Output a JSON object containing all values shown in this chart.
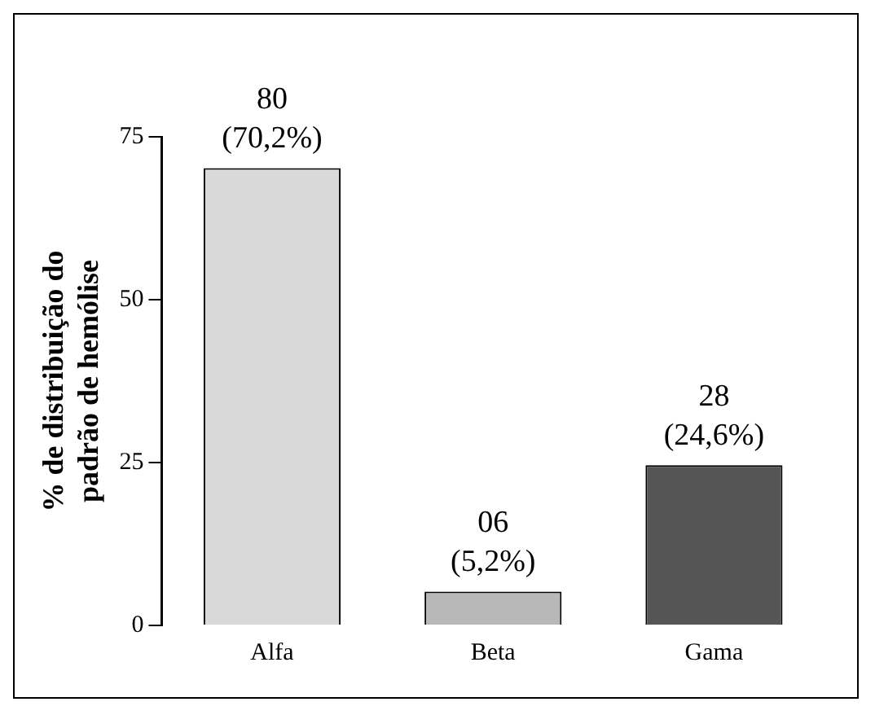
{
  "chart_data": {
    "type": "bar",
    "ylabel": "% de distribuição do\npadrão de hemólise",
    "categories": [
      "Alfa",
      "Beta",
      "Gama"
    ],
    "values": [
      70.2,
      5.2,
      24.6
    ],
    "colors": [
      "#d9d9d9",
      "#b8b8b8",
      "#555555"
    ],
    "value_labels": [
      "80\n(70,2%)",
      "06\n(5,2%)",
      "28\n(24,6%)"
    ],
    "ylim": [
      0,
      75
    ],
    "yticks": [
      0,
      25,
      50,
      75
    ],
    "grid": false,
    "legend": false
  }
}
